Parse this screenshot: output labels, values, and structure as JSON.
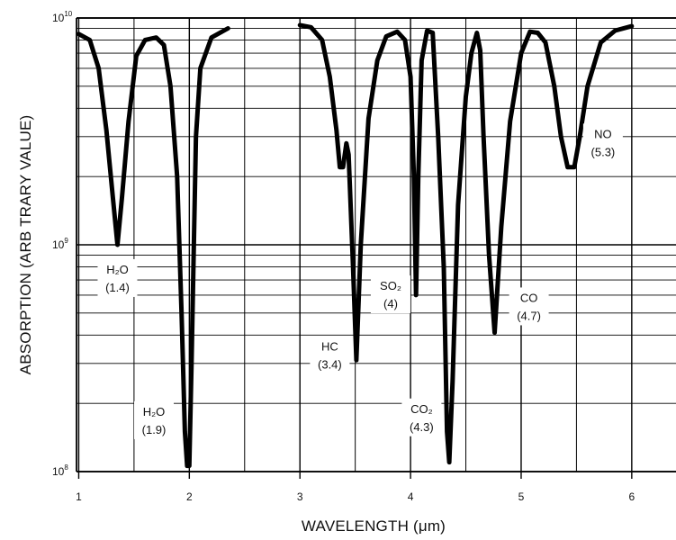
{
  "chart_data": {
    "type": "line",
    "xlabel": "WAVELENGTH (μm)",
    "ylabel": "ABSORPTION (ARB TRARY VALUE)",
    "xlim": [
      0.98,
      6.4
    ],
    "ylim": [
      100000000,
      10000000000
    ],
    "yscale": "log",
    "grid": true,
    "x_ticks": [
      {
        "value": 1,
        "label": "1"
      },
      {
        "value": 2,
        "label": "2"
      },
      {
        "value": 3,
        "label": "3"
      },
      {
        "value": 4,
        "label": "4"
      },
      {
        "value": 5,
        "label": "5"
      },
      {
        "value": 6,
        "label": "6"
      }
    ],
    "y_ticks": [
      {
        "value": 100000000,
        "base": "10",
        "exp": "8"
      },
      {
        "value": 1000000000,
        "base": "10",
        "exp": "9"
      },
      {
        "value": 10000000000,
        "base": "10",
        "exp": "10"
      }
    ],
    "series": [
      {
        "segments": [
          [
            [
              1.0,
              8500000000.0
            ],
            [
              1.1,
              8000000000.0
            ],
            [
              1.18,
              6000000000.0
            ],
            [
              1.25,
              3200000000.0
            ],
            [
              1.31,
              1600000000.0
            ],
            [
              1.35,
              1000000000.0
            ],
            [
              1.39,
              1600000000.0
            ],
            [
              1.45,
              3500000000.0
            ],
            [
              1.52,
              6800000000.0
            ],
            [
              1.6,
              8000000000.0
            ],
            [
              1.7,
              8200000000.0
            ],
            [
              1.77,
              7600000000.0
            ],
            [
              1.83,
              5000000000.0
            ],
            [
              1.89,
              2000000000.0
            ],
            [
              1.93,
              500000000.0
            ],
            [
              1.96,
              150000000.0
            ],
            [
              1.98,
              106000000.0
            ],
            [
              2.0,
              106000000.0
            ],
            [
              2.02,
              300000000.0
            ],
            [
              2.06,
              3000000000.0
            ],
            [
              2.1,
              6000000000.0
            ],
            [
              2.2,
              8200000000.0
            ],
            [
              2.35,
              9000000000.0
            ]
          ],
          [
            [
              3.0,
              9300000000.0
            ],
            [
              3.1,
              9100000000.0
            ],
            [
              3.2,
              8000000000.0
            ],
            [
              3.27,
              5500000000.0
            ],
            [
              3.33,
              3200000000.0
            ],
            [
              3.36,
              2200000000.0
            ],
            [
              3.39,
              2200000000.0
            ],
            [
              3.42,
              2800000000.0
            ],
            [
              3.44,
              2500000000.0
            ],
            [
              3.48,
              800000000.0
            ],
            [
              3.51,
              310000000.0
            ],
            [
              3.55,
              1000000000.0
            ],
            [
              3.62,
              3600000000.0
            ],
            [
              3.7,
              6500000000.0
            ],
            [
              3.78,
              8300000000.0
            ],
            [
              3.88,
              8700000000.0
            ],
            [
              3.95,
              8000000000.0
            ],
            [
              4.0,
              5500000000.0
            ],
            [
              4.03,
              2000000000.0
            ],
            [
              4.05,
              600000000.0
            ],
            [
              4.07,
              2000000000.0
            ],
            [
              4.1,
              6500000000.0
            ],
            [
              4.15,
              8800000000.0
            ],
            [
              4.2,
              8600000000.0
            ],
            [
              4.25,
              3000000000.0
            ],
            [
              4.3,
              800000000.0
            ],
            [
              4.33,
              150000000.0
            ],
            [
              4.35,
              110000000.0
            ],
            [
              4.38,
              250000000.0
            ],
            [
              4.43,
              1500000000.0
            ],
            [
              4.5,
              4500000000.0
            ],
            [
              4.55,
              7000000000.0
            ],
            [
              4.6,
              8600000000.0
            ],
            [
              4.63,
              7200000000.0
            ],
            [
              4.66,
              3000000000.0
            ],
            [
              4.71,
              900000000.0
            ],
            [
              4.76,
              410000000.0
            ],
            [
              4.82,
              1200000000.0
            ],
            [
              4.9,
              3500000000.0
            ],
            [
              5.0,
              7000000000.0
            ],
            [
              5.08,
              8700000000.0
            ],
            [
              5.15,
              8600000000.0
            ],
            [
              5.22,
              7800000000.0
            ],
            [
              5.3,
              5000000000.0
            ],
            [
              5.36,
              3000000000.0
            ],
            [
              5.42,
              2200000000.0
            ],
            [
              5.48,
              2200000000.0
            ],
            [
              5.53,
              3000000000.0
            ],
            [
              5.6,
              5000000000.0
            ],
            [
              5.72,
              7800000000.0
            ],
            [
              5.85,
              8800000000.0
            ],
            [
              6.0,
              9200000000.0
            ]
          ]
        ]
      }
    ],
    "annotations": [
      {
        "id": "h2o-14",
        "lines": [
          "H₂O",
          "(1.4)"
        ],
        "x": 1.35,
        "y": 720000000
      },
      {
        "id": "h2o-19",
        "lines": [
          "H₂O",
          "(1.9)"
        ],
        "x": 1.68,
        "y": 170000000
      },
      {
        "id": "hc-34",
        "lines": [
          "HC",
          "(3.4)"
        ],
        "x": 3.27,
        "y": 330000000
      },
      {
        "id": "so2-4",
        "lines": [
          "SO₂",
          "(4)"
        ],
        "x": 3.82,
        "y": 610000000
      },
      {
        "id": "co2-43",
        "lines": [
          "CO₂",
          "(4.3)"
        ],
        "x": 4.1,
        "y": 175000000
      },
      {
        "id": "co-47",
        "lines": [
          "CO",
          "(4.7)"
        ],
        "x": 5.07,
        "y": 540000000
      },
      {
        "id": "no-53",
        "lines": [
          "NO",
          "(5.3)"
        ],
        "x": 5.74,
        "y": 2850000000
      }
    ]
  }
}
